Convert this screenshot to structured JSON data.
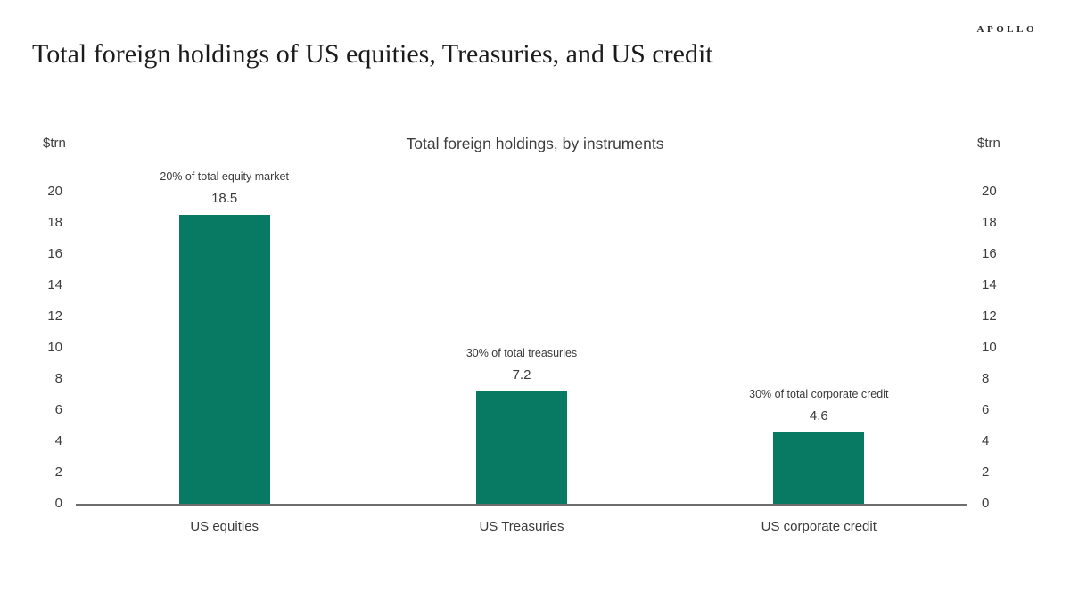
{
  "header": {
    "logo": "APOLLO",
    "title": "Total foreign holdings of US equities, Treasuries, and US credit"
  },
  "chart_data": {
    "type": "bar",
    "title": "Total foreign holdings, by instruments",
    "ylabel_left": "$trn",
    "ylabel_right": "$trn",
    "categories": [
      "US equities",
      "US Treasuries",
      "US corporate credit"
    ],
    "values": [
      18.5,
      7.2,
      4.6
    ],
    "value_labels": [
      "18.5",
      "7.2",
      "4.6"
    ],
    "annotations": [
      "20% of total equity market",
      "30% of total treasuries",
      "30% of total corporate credit"
    ],
    "yticks": [
      0,
      2,
      4,
      6,
      8,
      10,
      12,
      14,
      16,
      18,
      20
    ],
    "ylim": [
      0,
      20
    ],
    "grid": false,
    "legend": "none",
    "bar_color": "#087a63",
    "axis_line_color": "#6e6e6e",
    "text_color": "#3a3a3a"
  }
}
